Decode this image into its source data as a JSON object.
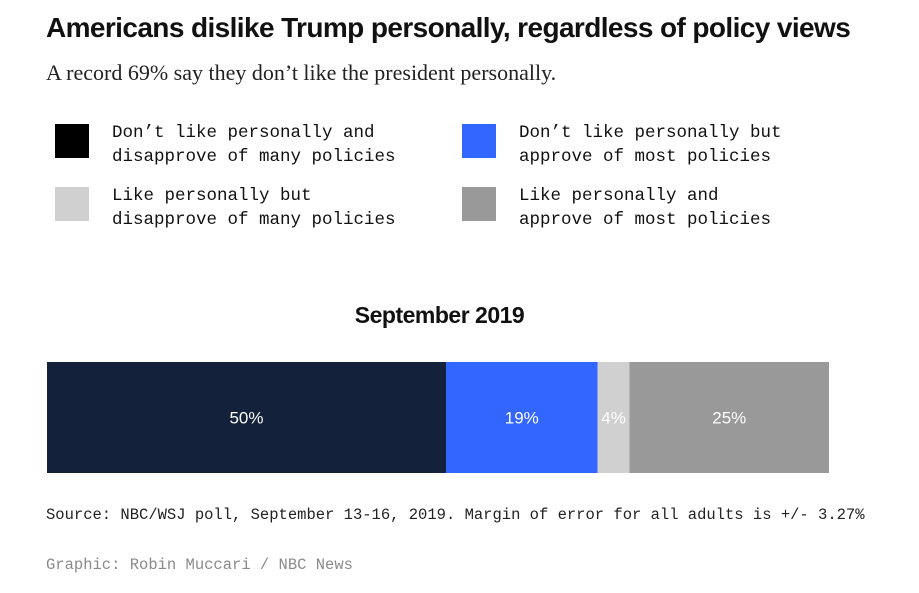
{
  "title": "Americans dislike Trump personally, regardless of policy views",
  "subtitle": "A record 69% say they don’t like the president personally.",
  "legend": [
    {
      "label": "Don’t like personally and\ndisapprove of many policies",
      "color": "#000000"
    },
    {
      "label": "Don’t like personally but\napprove of most policies",
      "color": "#3366ff"
    },
    {
      "label": "Like personally but\ndisapprove of many policies",
      "color": "#d0d0d0"
    },
    {
      "label": "Like personally and\napprove of most policies",
      "color": "#999999"
    }
  ],
  "chart_data": {
    "type": "bar",
    "orientation": "horizontal-stacked",
    "title": "September 2019",
    "categories": [
      "September 2019"
    ],
    "series": [
      {
        "name": "Don’t like personally and disapprove of many policies",
        "values": [
          50
        ],
        "label": "50%",
        "color": "#13213a"
      },
      {
        "name": "Don’t like personally but approve of most policies",
        "values": [
          19
        ],
        "label": "19%",
        "color": "#3366ff"
      },
      {
        "name": "Like personally but disapprove of many policies",
        "values": [
          4
        ],
        "label": "4%",
        "color": "#d0d0d0"
      },
      {
        "name": "Like personally and approve of most policies",
        "values": [
          25
        ],
        "label": "25%",
        "color": "#999999"
      }
    ],
    "xlim": [
      0,
      98
    ],
    "grid": false
  },
  "source": "Source: NBC/WSJ poll, September 13-16, 2019. Margin of error for all adults is +/- 3.27%",
  "credit": "Graphic: Robin Muccari / NBC News"
}
